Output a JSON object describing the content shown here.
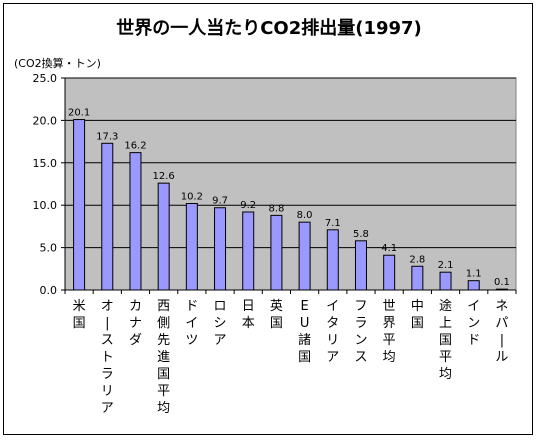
{
  "chart_data": {
    "type": "bar",
    "title": "世界の一人当たりCO2排出量(1997)",
    "ylabel": "(CO2換算・トン)",
    "xlabel": "",
    "ylim": [
      0,
      25
    ],
    "yticks": [
      "0.0",
      "5.0",
      "10.0",
      "15.0",
      "20.0",
      "25.0"
    ],
    "grid": true,
    "categories": [
      "米国",
      "オーストラリア",
      "カナダ",
      "西側先進国平均",
      "ドイツ",
      "ロシア",
      "日本",
      "英国",
      "EU諸国",
      "イタリア",
      "フランス",
      "世界平均",
      "中国",
      "途上国平均",
      "インド",
      "ネパール"
    ],
    "values": [
      20.1,
      17.3,
      16.2,
      12.6,
      10.2,
      9.7,
      9.2,
      8.8,
      8.0,
      7.1,
      5.8,
      4.1,
      2.8,
      2.1,
      1.1,
      0.1
    ],
    "value_labels": [
      "20.1",
      "17.3",
      "16.2",
      "12.6",
      "10.2",
      "9.7",
      "9.2",
      "8.8",
      "8.0",
      "7.1",
      "5.8",
      "4.1",
      "2.8",
      "2.1",
      "1.1",
      "0.1"
    ],
    "colors": {
      "bar": "#9999ff",
      "bar_edge": "#000000",
      "plot_bg": "#c0c0c0",
      "grid": "#000000"
    }
  }
}
